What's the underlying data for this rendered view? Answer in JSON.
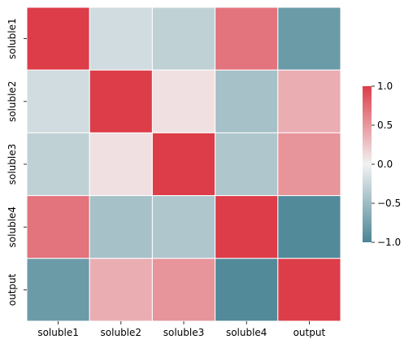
{
  "chart_data": {
    "type": "heatmap",
    "title": "",
    "xlabel": "",
    "ylabel": "",
    "x_categories": [
      "soluble1",
      "soluble2",
      "soluble3",
      "soluble4",
      "output"
    ],
    "y_categories": [
      "soluble1",
      "soluble2",
      "soluble3",
      "soluble4",
      "output"
    ],
    "values": [
      [
        1.0,
        -0.2,
        -0.3,
        0.7,
        -0.8
      ],
      [
        -0.2,
        1.0,
        0.1,
        -0.45,
        0.38
      ],
      [
        -0.3,
        0.1,
        1.0,
        -0.4,
        0.52
      ],
      [
        0.7,
        -0.45,
        -0.4,
        1.0,
        -0.95
      ],
      [
        -0.8,
        0.38,
        0.52,
        -0.95,
        1.0
      ]
    ],
    "color_range": [
      -1.0,
      1.0
    ],
    "colormap": {
      "low": "#4a8595",
      "mid": "#f2f2f2",
      "high": "#dc3d49"
    },
    "colorbar": {
      "ticks": [
        1.0,
        0.5,
        0.0,
        -0.5,
        -1.0
      ],
      "tick_labels": [
        "1.0",
        "0.5",
        "0.0",
        "−0.5",
        "−1.0"
      ],
      "placement": "right"
    },
    "grid_lines": true,
    "grid_color": "#ffffff"
  }
}
